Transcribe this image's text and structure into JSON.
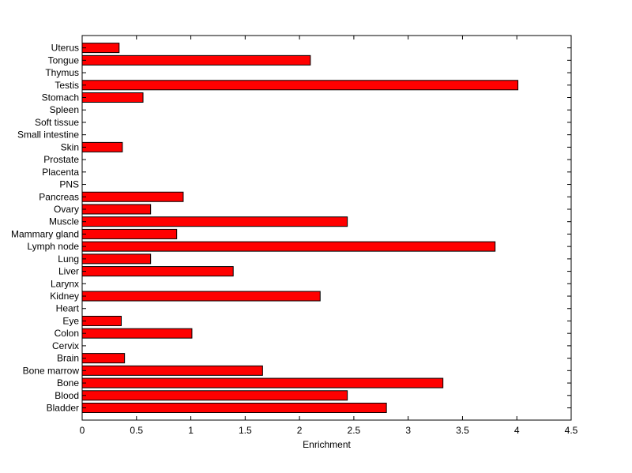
{
  "chart_data": {
    "type": "bar",
    "orientation": "horizontal",
    "title": "",
    "xlabel": "Enrichment",
    "ylabel": "",
    "xlim": [
      0,
      4.5
    ],
    "xticks": [
      "0",
      "0.5",
      "1",
      "1.5",
      "2",
      "2.5",
      "3",
      "3.5",
      "4",
      "4.5"
    ],
    "grid": false,
    "legend": "none",
    "bar_color": "#ff0000",
    "bar_edge_color": "#000000",
    "categories": [
      "Bladder",
      "Blood",
      "Bone",
      "Bone marrow",
      "Brain",
      "Cervix",
      "Colon",
      "Eye",
      "Heart",
      "Kidney",
      "Larynx",
      "Liver",
      "Lung",
      "Lymph node",
      "Mammary gland",
      "Muscle",
      "Ovary",
      "Pancreas",
      "PNS",
      "Placenta",
      "Prostate",
      "Skin",
      "Small intestine",
      "Soft tissue",
      "Spleen",
      "Stomach",
      "Testis",
      "Thymus",
      "Tongue",
      "Uterus"
    ],
    "values": [
      2.8,
      2.44,
      3.32,
      1.66,
      0.39,
      0,
      1.01,
      0.36,
      0,
      2.19,
      0,
      1.39,
      0.63,
      3.8,
      0.87,
      2.44,
      0.63,
      0.93,
      0,
      0,
      0,
      0.37,
      0,
      0,
      0,
      0.56,
      4.01,
      0,
      2.1,
      0.34
    ]
  }
}
